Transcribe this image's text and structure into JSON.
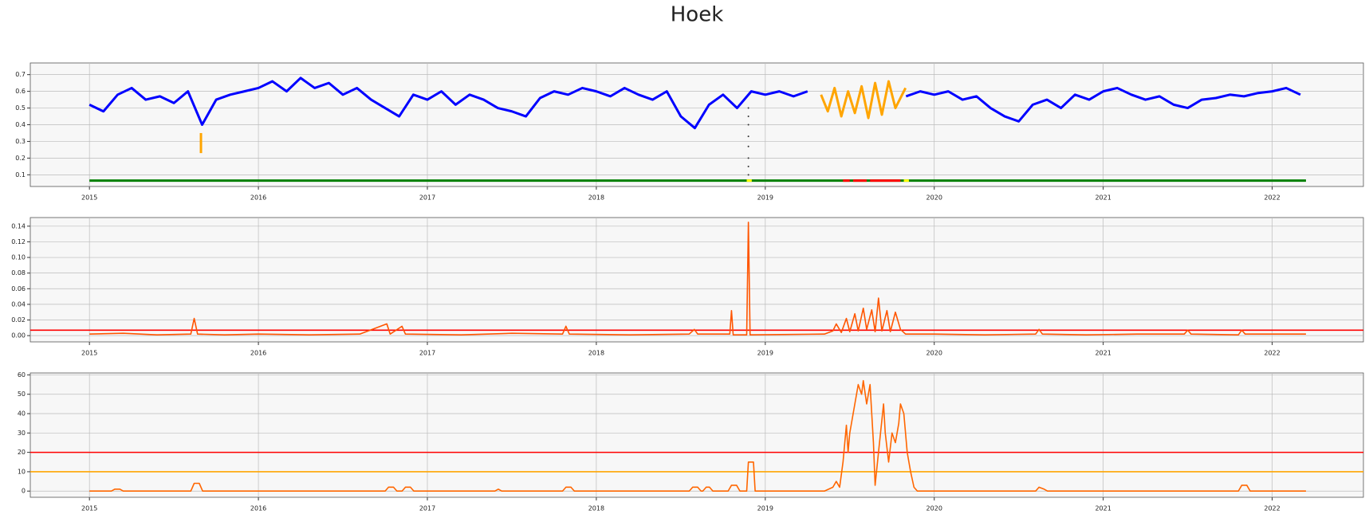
{
  "title": "Hoek",
  "chart_data": [
    {
      "type": "line",
      "xlim": [
        2014.65,
        2022.54
      ],
      "ylim": [
        0.03,
        0.77
      ],
      "xticks": [
        2015,
        2016,
        2017,
        2018,
        2019,
        2020,
        2021,
        2022
      ],
      "yticks": [
        0.1,
        0.2,
        0.3,
        0.4,
        0.5,
        0.6,
        0.7
      ],
      "grid": true,
      "series": [
        {
          "type": "line",
          "color": "#0000ff",
          "x": [
            2015.0,
            2015.083,
            2015.167,
            2015.25,
            2015.333,
            2015.417,
            2015.5,
            2015.583,
            2015.667,
            2015.75,
            2015.833,
            2015.917,
            2016.0,
            2016.083,
            2016.167,
            2016.25,
            2016.333,
            2016.417,
            2016.5,
            2016.583,
            2016.667,
            2016.75,
            2016.833,
            2016.917,
            2017.0,
            2017.083,
            2017.167,
            2017.25,
            2017.333,
            2017.417,
            2017.5,
            2017.583,
            2017.667,
            2017.75,
            2017.833,
            2017.917,
            2018.0,
            2018.083,
            2018.167,
            2018.25,
            2018.333,
            2018.417,
            2018.5,
            2018.583,
            2018.667,
            2018.75,
            2018.833,
            2018.917,
            2019.0,
            2019.083,
            2019.167,
            2019.25,
            2019.333,
            2019.417,
            2019.5,
            2019.583,
            2019.667,
            2019.75,
            2019.833,
            2019.917,
            2020.0,
            2020.083,
            2020.167,
            2020.25,
            2020.333,
            2020.417,
            2020.5,
            2020.583,
            2020.667,
            2020.75,
            2020.833,
            2020.917,
            2021.0,
            2021.083,
            2021.167,
            2021.25,
            2021.333,
            2021.417,
            2021.5,
            2021.583,
            2021.667,
            2021.75,
            2021.833,
            2021.917,
            2022.0,
            2022.083,
            2022.167
          ],
          "values": [
            0.52,
            0.48,
            0.58,
            0.62,
            0.55,
            0.57,
            0.53,
            0.6,
            0.4,
            0.55,
            0.58,
            0.6,
            0.62,
            0.66,
            0.6,
            0.68,
            0.62,
            0.65,
            0.58,
            0.62,
            0.55,
            0.5,
            0.45,
            0.58,
            0.55,
            0.6,
            0.52,
            0.58,
            0.55,
            0.5,
            0.48,
            0.45,
            0.56,
            0.6,
            0.58,
            0.62,
            0.6,
            0.57,
            0.62,
            0.58,
            0.55,
            0.6,
            0.45,
            0.38,
            0.52,
            0.58,
            0.5,
            0.6,
            0.58,
            0.6,
            0.57,
            0.6,
            null,
            null,
            null,
            null,
            null,
            null,
            0.57,
            0.6,
            0.58,
            0.6,
            0.55,
            0.57,
            0.5,
            0.45,
            0.42,
            0.52,
            0.55,
            0.5,
            0.58,
            0.55,
            0.6,
            0.62,
            0.58,
            0.55,
            0.57,
            0.52,
            0.5,
            0.55,
            0.56,
            0.58,
            0.57,
            0.59,
            0.6,
            0.62,
            0.58
          ]
        },
        {
          "type": "line",
          "color": "#ffa500",
          "x": [
            2019.33,
            2019.37,
            2019.41,
            2019.45,
            2019.49,
            2019.53,
            2019.57,
            2019.61,
            2019.65,
            2019.69,
            2019.73,
            2019.77,
            2019.83
          ],
          "values": [
            0.58,
            0.48,
            0.62,
            0.45,
            0.6,
            0.47,
            0.63,
            0.44,
            0.65,
            0.46,
            0.66,
            0.5,
            0.62
          ]
        },
        {
          "type": "line",
          "color": "#ffa500",
          "x": [
            2015.66,
            2015.66
          ],
          "values": [
            0.35,
            0.23
          ]
        },
        {
          "type": "scatter",
          "color": "#333333",
          "x": [
            2018.9,
            2018.9,
            2018.9,
            2018.9,
            2018.9,
            2018.9,
            2018.9,
            2018.9
          ],
          "values": [
            0.5,
            0.45,
            0.4,
            0.33,
            0.27,
            0.2,
            0.15,
            0.1
          ]
        },
        {
          "type": "line",
          "color": "#008000",
          "x": [
            2015.0,
            2022.2
          ],
          "values": [
            0.065,
            0.065
          ]
        },
        {
          "type": "line",
          "color": "#ff0000",
          "x": [
            2019.46,
            2019.5,
            2019.51,
            2019.52,
            2019.6,
            2019.61,
            2019.62,
            2019.8
          ],
          "values": [
            0.065,
            0.065,
            null,
            0.065,
            0.065,
            null,
            0.065,
            0.065
          ]
        },
        {
          "type": "line",
          "color": "#ffff00",
          "x": [
            2018.89,
            2018.92,
            2018.93,
            2019.82,
            2019.85
          ],
          "values": [
            0.065,
            0.065,
            null,
            0.065,
            0.065
          ]
        }
      ]
    },
    {
      "type": "line",
      "xlim": [
        2014.65,
        2022.54
      ],
      "ylim": [
        -0.008,
        0.151
      ],
      "xticks": [
        2015,
        2016,
        2017,
        2018,
        2019,
        2020,
        2021,
        2022
      ],
      "yticks": [
        {
          "value": 0,
          "label": "0.00"
        },
        {
          "value": 0.02,
          "label": "0.02"
        },
        {
          "value": 0.04,
          "label": "0.04"
        },
        {
          "value": 0.06,
          "label": "0.06"
        },
        {
          "value": 0.08,
          "label": "0.08"
        },
        {
          "value": 0.1,
          "label": "0.10"
        },
        {
          "value": 0.12,
          "label": "0.12"
        },
        {
          "value": 0.14,
          "label": "0.14"
        }
      ],
      "grid": true,
      "hlines": [
        {
          "value": 0.007,
          "color": "#ff0000"
        }
      ],
      "series": [
        {
          "type": "line",
          "color": "#ff5500",
          "x": [
            2015.0,
            2015.2,
            2015.4,
            2015.6,
            2015.62,
            2015.64,
            2015.8,
            2016.0,
            2016.3,
            2016.6,
            2016.76,
            2016.78,
            2016.85,
            2016.87,
            2017.2,
            2017.5,
            2017.8,
            2017.82,
            2017.84,
            2018.2,
            2018.55,
            2018.58,
            2018.6,
            2018.79,
            2018.8,
            2018.81,
            2018.89,
            2018.9,
            2018.91,
            2019.35,
            2019.4,
            2019.42,
            2019.45,
            2019.48,
            2019.5,
            2019.53,
            2019.55,
            2019.58,
            2019.6,
            2019.63,
            2019.65,
            2019.67,
            2019.69,
            2019.72,
            2019.74,
            2019.77,
            2019.8,
            2019.83,
            2020.0,
            2020.3,
            2020.6,
            2020.62,
            2020.64,
            2020.9,
            2021.2,
            2021.48,
            2021.5,
            2021.52,
            2021.8,
            2021.82,
            2021.84,
            2022.2
          ],
          "values": [
            0.002,
            0.003,
            0.001,
            0.002,
            0.022,
            0.002,
            0.001,
            0.002,
            0.001,
            0.002,
            0.015,
            0.002,
            0.012,
            0.002,
            0.001,
            0.003,
            0.002,
            0.012,
            0.002,
            0.001,
            0.002,
            0.008,
            0.002,
            0.002,
            0.032,
            0.001,
            0.001,
            0.145,
            0.001,
            0.002,
            0.006,
            0.015,
            0.004,
            0.022,
            0.005,
            0.028,
            0.006,
            0.035,
            0.008,
            0.033,
            0.005,
            0.048,
            0.006,
            0.032,
            0.005,
            0.03,
            0.008,
            0.002,
            0.002,
            0.001,
            0.002,
            0.008,
            0.002,
            0.001,
            0.002,
            0.002,
            0.007,
            0.002,
            0.001,
            0.007,
            0.002,
            0.002
          ]
        }
      ]
    },
    {
      "type": "line",
      "xlim": [
        2014.65,
        2022.54
      ],
      "ylim": [
        -3.2,
        61
      ],
      "xticks": [
        2015,
        2016,
        2017,
        2018,
        2019,
        2020,
        2021,
        2022
      ],
      "yticks": [
        0,
        10,
        20,
        30,
        40,
        50,
        60
      ],
      "grid": true,
      "hlines": [
        {
          "value": 20,
          "color": "#ff0000"
        },
        {
          "value": 10,
          "color": "#ffa500"
        }
      ],
      "series": [
        {
          "type": "line",
          "color": "#ff6600",
          "x": [
            2015.0,
            2015.13,
            2015.15,
            2015.18,
            2015.2,
            2015.6,
            2015.62,
            2015.65,
            2015.67,
            2016.75,
            2016.77,
            2016.8,
            2016.82,
            2016.85,
            2016.87,
            2016.9,
            2016.92,
            2017.4,
            2017.42,
            2017.44,
            2017.8,
            2017.82,
            2017.85,
            2017.87,
            2018.55,
            2018.57,
            2018.6,
            2018.62,
            2018.63,
            2018.65,
            2018.67,
            2018.69,
            2018.78,
            2018.8,
            2018.83,
            2018.85,
            2018.89,
            2018.9,
            2018.93,
            2018.94,
            2019.35,
            2019.4,
            2019.42,
            2019.44,
            2019.46,
            2019.48,
            2019.49,
            2019.5,
            2019.53,
            2019.55,
            2019.57,
            2019.58,
            2019.6,
            2019.62,
            2019.64,
            2019.65,
            2019.67,
            2019.7,
            2019.71,
            2019.73,
            2019.75,
            2019.77,
            2019.79,
            2019.8,
            2019.82,
            2019.84,
            2019.86,
            2019.88,
            2019.9,
            2020.6,
            2020.62,
            2020.65,
            2020.67,
            2021.8,
            2021.82,
            2021.85,
            2021.87,
            2022.2
          ],
          "values": [
            0,
            0,
            1,
            1,
            0,
            0,
            4,
            4,
            0,
            0,
            2,
            2,
            0,
            0,
            2,
            2,
            0,
            0,
            1,
            0,
            0,
            2,
            2,
            0,
            0,
            2,
            2,
            0,
            0,
            2,
            2,
            0,
            0,
            3,
            3,
            0,
            0,
            15,
            15,
            0,
            0,
            2,
            5,
            2,
            15,
            34,
            20,
            30,
            45,
            55,
            50,
            57,
            45,
            55,
            25,
            3,
            20,
            45,
            30,
            15,
            30,
            25,
            35,
            45,
            40,
            20,
            10,
            2,
            0,
            0,
            2,
            1,
            0,
            0,
            3,
            3,
            0,
            0
          ]
        }
      ]
    }
  ]
}
